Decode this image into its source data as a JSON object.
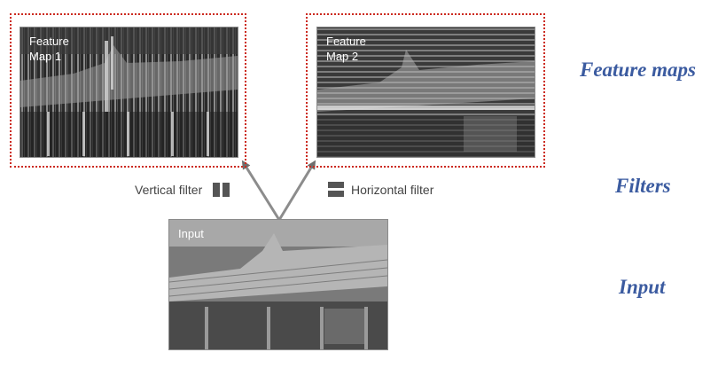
{
  "feature_map_1": {
    "label": "Feature\nMap 1"
  },
  "feature_map_2": {
    "label": "Feature\nMap 2"
  },
  "input_image": {
    "label": "Input"
  },
  "filters": {
    "vertical": {
      "label": "Vertical filter",
      "icon": "vertical-filter-icon"
    },
    "horizontal": {
      "label": "Horizontal filter",
      "icon": "horizontal-filter-icon"
    }
  },
  "side_labels": {
    "feature_maps": "Feature maps",
    "filters": "Filters",
    "input": "Input"
  },
  "colors": {
    "frame": "#cc2a1e",
    "side_label": "#3b5ba0",
    "arrow": "#8c8c8c",
    "filter_icon": "#555555"
  }
}
